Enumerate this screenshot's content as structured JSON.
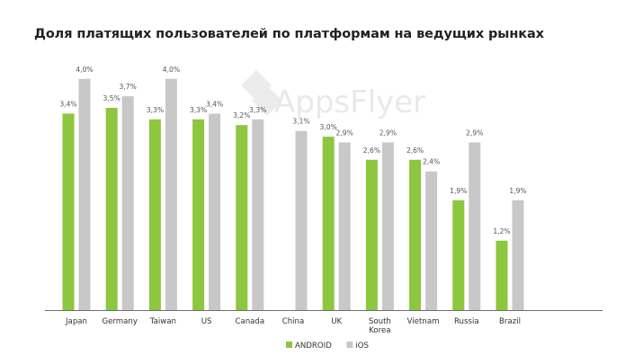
{
  "chart_data": {
    "type": "bar",
    "title": "Доля платящих пользователей по платформам на ведущих рынках",
    "watermark": "AppsFlyer",
    "categories": [
      [
        "Japan"
      ],
      [
        "Germany"
      ],
      [
        "Taiwan"
      ],
      [
        "US"
      ],
      [
        "Canada"
      ],
      [
        "China"
      ],
      [
        "UK"
      ],
      [
        "South",
        "Korea"
      ],
      [
        "Vietnam"
      ],
      [
        "Russia"
      ],
      [
        "Brazil"
      ]
    ],
    "series": [
      {
        "name": "ANDROID",
        "color": "#8dc63f",
        "values": [
          3.4,
          3.5,
          3.3,
          3.3,
          3.2,
          null,
          3.0,
          2.6,
          2.6,
          1.9,
          1.2
        ],
        "labels": [
          "3,4%",
          "3,5%",
          "3,3%",
          "3,3%",
          "3,2%",
          "",
          "3,0%",
          "2,6%",
          "2,6%",
          "1,9%",
          "1,2%"
        ]
      },
      {
        "name": "iOS",
        "color": "#c8c8c8",
        "values": [
          4.0,
          3.7,
          4.0,
          3.4,
          3.3,
          3.1,
          2.9,
          2.9,
          2.4,
          2.9,
          1.9
        ],
        "labels": [
          "4,0%",
          "3,7%",
          "4,0%",
          "3,4%",
          "3,3%",
          "3,1%",
          "2,9%",
          "2,9%",
          "2,4%",
          "2,9%",
          "1,9%"
        ]
      }
    ],
    "ylim": [
      0,
      4.0
    ],
    "xlabel": "",
    "ylabel": "",
    "grid": false,
    "legend_position": "bottom-center"
  }
}
